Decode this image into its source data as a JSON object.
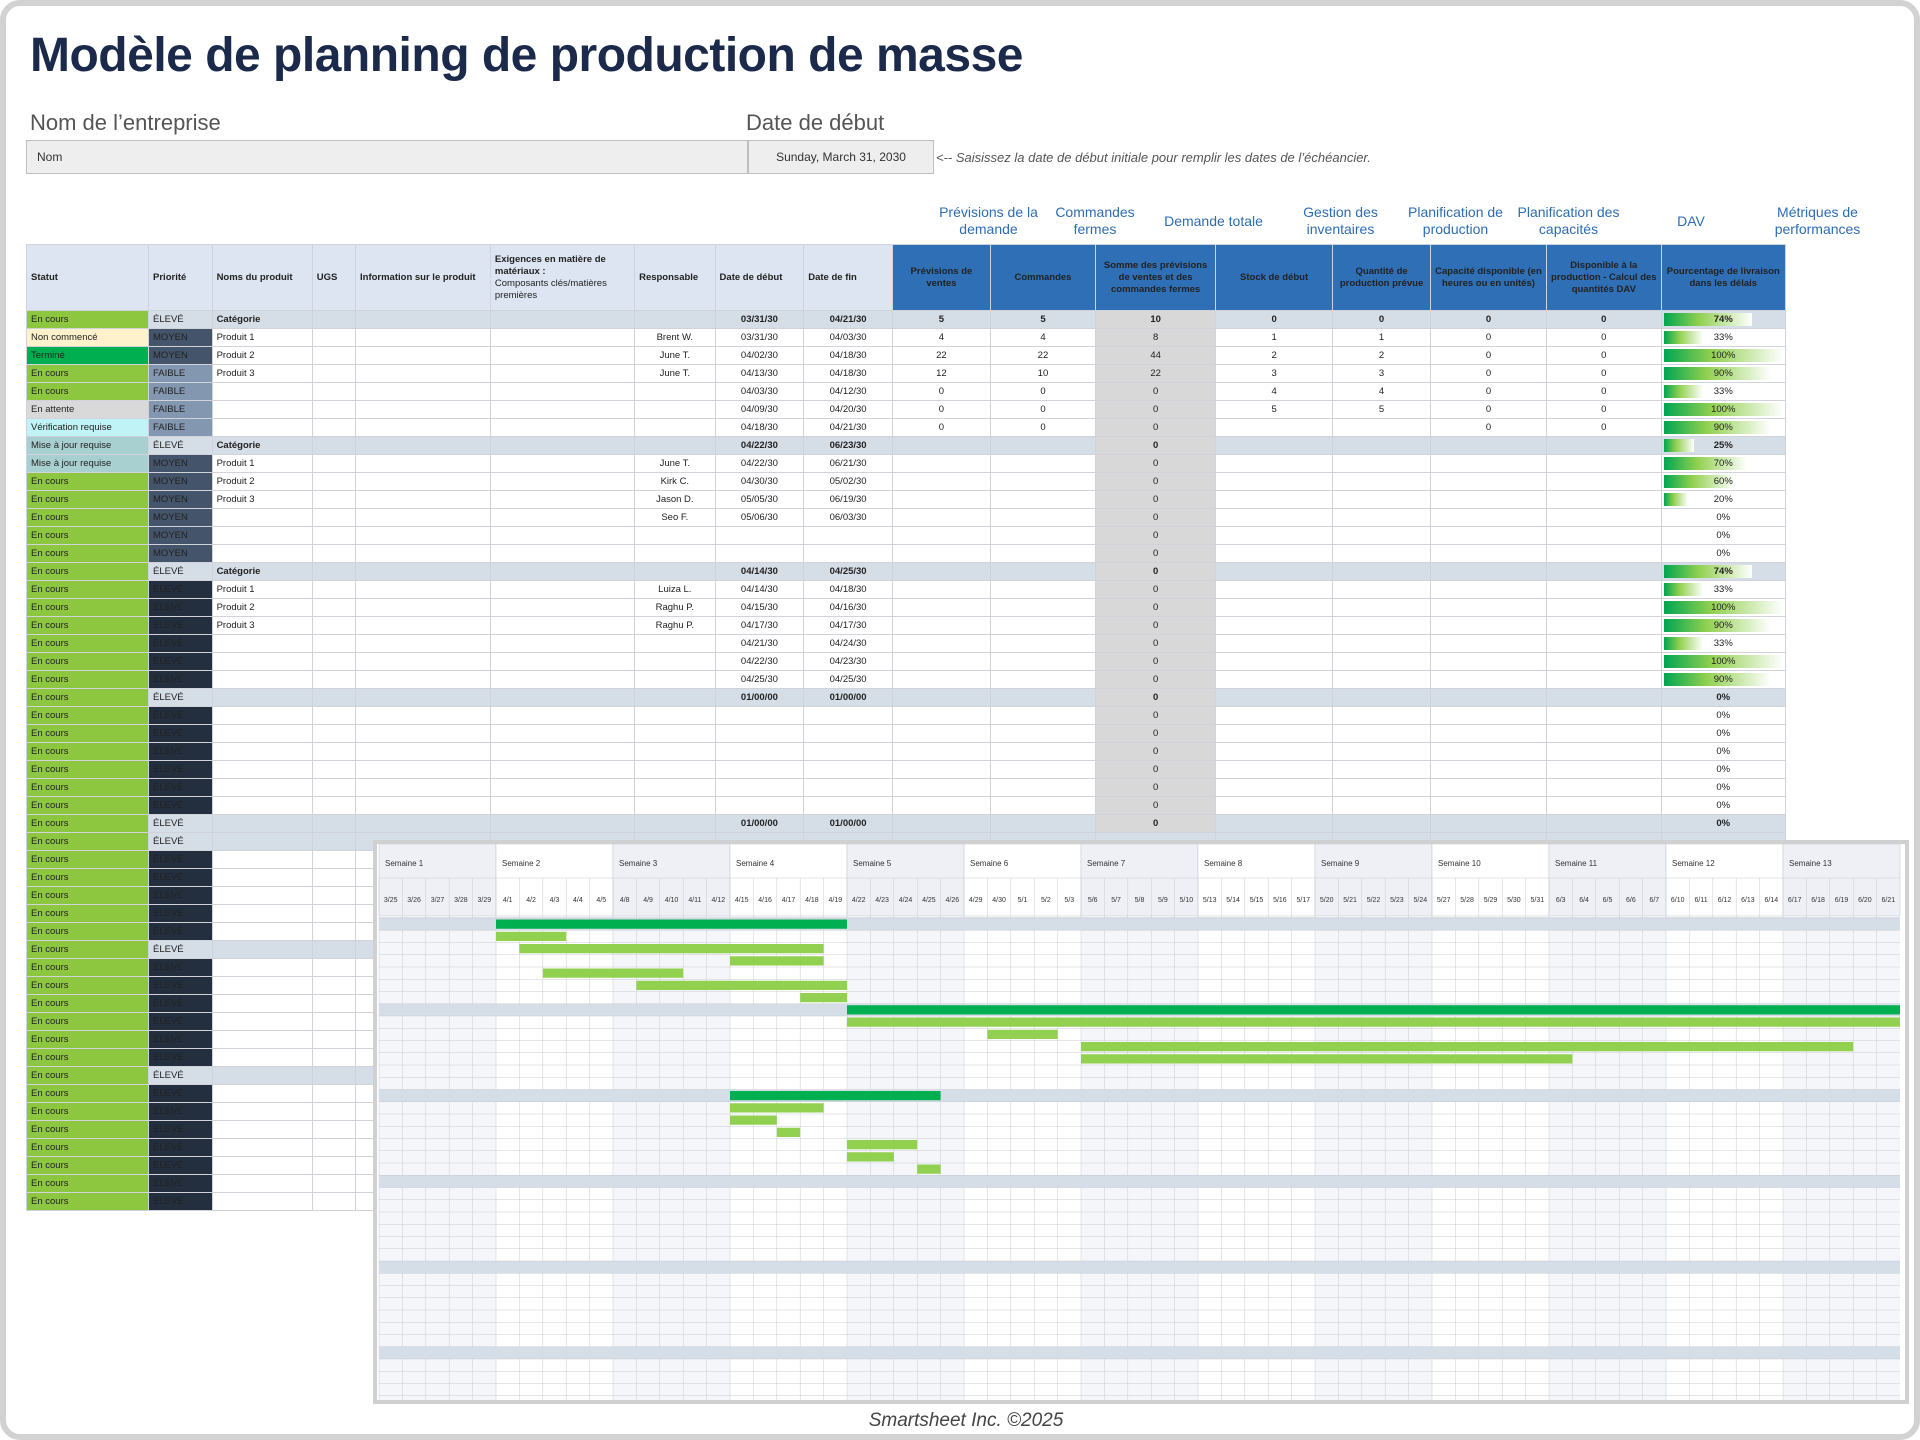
{
  "title": "Modèle de planning de production de masse",
  "company_label": "Nom de l’entreprise",
  "company_value": "Nom",
  "start_label": "Date de début",
  "start_value": "Sunday, March 31, 2030",
  "start_note": "<-- Saisissez la date de début initiale pour remplir les dates de l’échéancier.",
  "group_headers": [
    "Prévisions de la demande",
    "Commandes fermes",
    "Demande totale",
    "Gestion des inventaires",
    "Planification de production",
    "Planification des capacités",
    "DAV",
    "Métriques de performances"
  ],
  "columns": [
    "Statut",
    "Priorité",
    "Noms du produit",
    "UGS",
    "Information sur le produit",
    "Exigences en matière de matériaux :",
    "Composants clés/matières premières",
    "Responsable",
    "Date de début",
    "Date de fin",
    "Prévisions de ventes",
    "Commandes",
    "Somme des prévisions de ventes et des commandes fermes",
    "Stock de début",
    "Quantité de production prévue",
    "Capacité disponible (en heures ou en unités)",
    "Disponible à la production - Calcul des quantités DAV",
    "Pourcentage de livraison dans les délais"
  ],
  "colors": {
    "status": {
      "En cours": "#8dc63f",
      "Non commencé": "#fdf2cc",
      "Terminé": "#00b050",
      "En attente": "#d9d9d9",
      "Vérification requise": "#bff3f5",
      "Mise à jour requise": "#a9d0d1"
    },
    "accent": "#2f6fb5",
    "bar_dark": "#00b050",
    "bar_light": "#92d050"
  },
  "rows": [
    {
      "status": "En cours",
      "priority": "ÉLEVÉ",
      "product": "Catégorie",
      "owner": "",
      "start": "03/31/30",
      "end": "04/21/30",
      "sales": "5",
      "orders": "5",
      "demand": "10",
      "stock": "0",
      "qty": "0",
      "cap": "0",
      "dav": "0",
      "perf": "74%",
      "cat": true
    },
    {
      "status": "Non commencé",
      "priority": "MOYEN",
      "product": "Produit 1",
      "owner": "Brent W.",
      "start": "03/31/30",
      "end": "04/03/30",
      "sales": "4",
      "orders": "4",
      "demand": "8",
      "stock": "1",
      "qty": "1",
      "cap": "0",
      "dav": "0",
      "perf": "33%"
    },
    {
      "status": "Terminé",
      "priority": "MOYEN",
      "product": "Produit 2",
      "owner": "June T.",
      "start": "04/02/30",
      "end": "04/18/30",
      "sales": "22",
      "orders": "22",
      "demand": "44",
      "stock": "2",
      "qty": "2",
      "cap": "0",
      "dav": "0",
      "perf": "100%"
    },
    {
      "status": "En cours",
      "priority": "FAIBLE",
      "product": "Produit 3",
      "owner": "June T.",
      "start": "04/13/30",
      "end": "04/18/30",
      "sales": "12",
      "orders": "10",
      "demand": "22",
      "stock": "3",
      "qty": "3",
      "cap": "0",
      "dav": "0",
      "perf": "90%"
    },
    {
      "status": "En cours",
      "priority": "FAIBLE",
      "product": "",
      "owner": "",
      "start": "04/03/30",
      "end": "04/12/30",
      "sales": "0",
      "orders": "0",
      "demand": "0",
      "stock": "4",
      "qty": "4",
      "cap": "0",
      "dav": "0",
      "perf": "33%"
    },
    {
      "status": "En attente",
      "priority": "FAIBLE",
      "product": "",
      "owner": "",
      "start": "04/09/30",
      "end": "04/20/30",
      "sales": "0",
      "orders": "0",
      "demand": "0",
      "stock": "5",
      "qty": "5",
      "cap": "0",
      "dav": "0",
      "perf": "100%"
    },
    {
      "status": "Vérification requise",
      "priority": "FAIBLE",
      "product": "",
      "owner": "",
      "start": "04/18/30",
      "end": "04/21/30",
      "sales": "0",
      "orders": "0",
      "demand": "0",
      "stock": "",
      "qty": "",
      "cap": "0",
      "dav": "0",
      "perf": "90%"
    },
    {
      "status": "Mise à jour requise",
      "priority": "ÉLEVÉ",
      "product": "Catégorie",
      "owner": "",
      "start": "04/22/30",
      "end": "06/23/30",
      "sales": "",
      "orders": "",
      "demand": "0",
      "stock": "",
      "qty": "",
      "cap": "",
      "dav": "",
      "perf": "25%",
      "cat": true
    },
    {
      "status": "Mise à jour requise",
      "priority": "MOYEN",
      "product": "Produit 1",
      "owner": "June T.",
      "start": "04/22/30",
      "end": "06/21/30",
      "sales": "",
      "orders": "",
      "demand": "0",
      "stock": "",
      "qty": "",
      "cap": "",
      "dav": "",
      "perf": "70%"
    },
    {
      "status": "En cours",
      "priority": "MOYEN",
      "product": "Produit 2",
      "owner": "Kirk C.",
      "start": "04/30/30",
      "end": "05/02/30",
      "sales": "",
      "orders": "",
      "demand": "0",
      "stock": "",
      "qty": "",
      "cap": "",
      "dav": "",
      "perf": "60%"
    },
    {
      "status": "En cours",
      "priority": "MOYEN",
      "product": "Produit 3",
      "owner": "Jason D.",
      "start": "05/05/30",
      "end": "06/19/30",
      "sales": "",
      "orders": "",
      "demand": "0",
      "stock": "",
      "qty": "",
      "cap": "",
      "dav": "",
      "perf": "20%"
    },
    {
      "status": "En cours",
      "priority": "MOYEN",
      "product": "",
      "owner": "Seo F.",
      "start": "05/06/30",
      "end": "06/03/30",
      "sales": "",
      "orders": "",
      "demand": "0",
      "stock": "",
      "qty": "",
      "cap": "",
      "dav": "",
      "perf": "0%"
    },
    {
      "status": "En cours",
      "priority": "MOYEN",
      "product": "",
      "owner": "",
      "start": "",
      "end": "",
      "sales": "",
      "orders": "",
      "demand": "0",
      "stock": "",
      "qty": "",
      "cap": "",
      "dav": "",
      "perf": "0%"
    },
    {
      "status": "En cours",
      "priority": "MOYEN",
      "product": "",
      "owner": "",
      "start": "",
      "end": "",
      "sales": "",
      "orders": "",
      "demand": "0",
      "stock": "",
      "qty": "",
      "cap": "",
      "dav": "",
      "perf": "0%"
    },
    {
      "status": "En cours",
      "priority": "ÉLEVÉ",
      "product": "Catégorie",
      "owner": "",
      "start": "04/14/30",
      "end": "04/25/30",
      "sales": "",
      "orders": "",
      "demand": "0",
      "stock": "",
      "qty": "",
      "cap": "",
      "dav": "",
      "perf": "74%",
      "cat": true
    },
    {
      "status": "En cours",
      "priority": "ÉLEVÉ",
      "product": "Produit 1",
      "owner": "Luiza L.",
      "start": "04/14/30",
      "end": "04/18/30",
      "sales": "",
      "orders": "",
      "demand": "0",
      "stock": "",
      "qty": "",
      "cap": "",
      "dav": "",
      "perf": "33%"
    },
    {
      "status": "En cours",
      "priority": "ÉLEVÉ",
      "product": "Produit 2",
      "owner": "Raghu P.",
      "start": "04/15/30",
      "end": "04/16/30",
      "sales": "",
      "orders": "",
      "demand": "0",
      "stock": "",
      "qty": "",
      "cap": "",
      "dav": "",
      "perf": "100%"
    },
    {
      "status": "En cours",
      "priority": "ÉLEVÉ",
      "product": "Produit 3",
      "owner": "Raghu P.",
      "start": "04/17/30",
      "end": "04/17/30",
      "sales": "",
      "orders": "",
      "demand": "0",
      "stock": "",
      "qty": "",
      "cap": "",
      "dav": "",
      "perf": "90%"
    },
    {
      "status": "En cours",
      "priority": "ÉLEVÉ",
      "product": "",
      "owner": "",
      "start": "04/21/30",
      "end": "04/24/30",
      "sales": "",
      "orders": "",
      "demand": "0",
      "stock": "",
      "qty": "",
      "cap": "",
      "dav": "",
      "perf": "33%"
    },
    {
      "status": "En cours",
      "priority": "ÉLEVÉ",
      "product": "",
      "owner": "",
      "start": "04/22/30",
      "end": "04/23/30",
      "sales": "",
      "orders": "",
      "demand": "0",
      "stock": "",
      "qty": "",
      "cap": "",
      "dav": "",
      "perf": "100%"
    },
    {
      "status": "En cours",
      "priority": "ÉLEVÉ",
      "product": "",
      "owner": "",
      "start": "04/25/30",
      "end": "04/25/30",
      "sales": "",
      "orders": "",
      "demand": "0",
      "stock": "",
      "qty": "",
      "cap": "",
      "dav": "",
      "perf": "90%"
    },
    {
      "status": "En cours",
      "priority": "ÉLEVÉ",
      "product": "",
      "owner": "",
      "start": "01/00/00",
      "end": "01/00/00",
      "sales": "",
      "orders": "",
      "demand": "0",
      "stock": "",
      "qty": "",
      "cap": "",
      "dav": "",
      "perf": "0%",
      "cat": true
    },
    {
      "status": "En cours",
      "priority": "ÉLEVÉ",
      "product": "",
      "owner": "",
      "start": "",
      "end": "",
      "sales": "",
      "orders": "",
      "demand": "0",
      "stock": "",
      "qty": "",
      "cap": "",
      "dav": "",
      "perf": "0%"
    },
    {
      "status": "En cours",
      "priority": "ÉLEVÉ",
      "product": "",
      "owner": "",
      "start": "",
      "end": "",
      "sales": "",
      "orders": "",
      "demand": "0",
      "stock": "",
      "qty": "",
      "cap": "",
      "dav": "",
      "perf": "0%"
    },
    {
      "status": "En cours",
      "priority": "ÉLEVÉ",
      "product": "",
      "owner": "",
      "start": "",
      "end": "",
      "sales": "",
      "orders": "",
      "demand": "0",
      "stock": "",
      "qty": "",
      "cap": "",
      "dav": "",
      "perf": "0%"
    },
    {
      "status": "En cours",
      "priority": "ÉLEVÉ",
      "product": "",
      "owner": "",
      "start": "",
      "end": "",
      "sales": "",
      "orders": "",
      "demand": "0",
      "stock": "",
      "qty": "",
      "cap": "",
      "dav": "",
      "perf": "0%"
    },
    {
      "status": "En cours",
      "priority": "ÉLEVÉ",
      "product": "",
      "owner": "",
      "start": "",
      "end": "",
      "sales": "",
      "orders": "",
      "demand": "0",
      "stock": "",
      "qty": "",
      "cap": "",
      "dav": "",
      "perf": "0%"
    },
    {
      "status": "En cours",
      "priority": "ÉLEVÉ",
      "product": "",
      "owner": "",
      "start": "",
      "end": "",
      "sales": "",
      "orders": "",
      "demand": "0",
      "stock": "",
      "qty": "",
      "cap": "",
      "dav": "",
      "perf": "0%"
    },
    {
      "status": "En cours",
      "priority": "ÉLEVÉ",
      "product": "",
      "owner": "",
      "start": "01/00/00",
      "end": "01/00/00",
      "sales": "",
      "orders": "",
      "demand": "0",
      "stock": "",
      "qty": "",
      "cap": "",
      "dav": "",
      "perf": "0%",
      "cat": true
    },
    {
      "status": "En cours",
      "priority": "ÉLEVÉ",
      "cat": true
    },
    {
      "status": "En cours",
      "priority": "ÉLEVÉ"
    },
    {
      "status": "En cours",
      "priority": "ÉLEVÉ"
    },
    {
      "status": "En cours",
      "priority": "ÉLEVÉ"
    },
    {
      "status": "En cours",
      "priority": "ÉLEVÉ"
    },
    {
      "status": "En cours",
      "priority": "ÉLEVÉ"
    },
    {
      "status": "En cours",
      "priority": "ÉLEVÉ",
      "cat": true
    },
    {
      "status": "En cours",
      "priority": "ÉLEVÉ"
    },
    {
      "status": "En cours",
      "priority": "ÉLEVÉ"
    },
    {
      "status": "En cours",
      "priority": "ÉLEVÉ"
    },
    {
      "status": "En cours",
      "priority": "ÉLEVÉ"
    },
    {
      "status": "En cours",
      "priority": "ÉLEVÉ"
    },
    {
      "status": "En cours",
      "priority": "ÉLEVÉ"
    },
    {
      "status": "En cours",
      "priority": "ÉLEVÉ",
      "cat": true
    },
    {
      "status": "En cours",
      "priority": "ÉLEVÉ"
    },
    {
      "status": "En cours",
      "priority": "ÉLEVÉ"
    },
    {
      "status": "En cours",
      "priority": "ÉLEVÉ"
    },
    {
      "status": "En cours",
      "priority": "ÉLEVÉ"
    },
    {
      "status": "En cours",
      "priority": "ÉLEVÉ"
    },
    {
      "status": "En cours",
      "priority": "ÉLEVÉ"
    },
    {
      "status": "En cours",
      "priority": "ÉLEVÉ"
    }
  ],
  "gantt": {
    "weeks": [
      "Semaine 1",
      "Semaine 2",
      "Semaine 3",
      "Semaine 4",
      "Semaine 5",
      "Semaine 6",
      "Semaine 7",
      "Semaine 8",
      "Semaine 9",
      "Semaine 10",
      "Semaine 11",
      "Semaine 12",
      "Semaine 13"
    ],
    "days": [
      "3/25",
      "3/26",
      "3/27",
      "3/28",
      "3/29",
      "4/1",
      "4/2",
      "4/3",
      "4/4",
      "4/5",
      "4/8",
      "4/9",
      "4/10",
      "4/11",
      "4/12",
      "4/15",
      "4/16",
      "4/17",
      "4/18",
      "4/19",
      "4/22",
      "4/23",
      "4/24",
      "4/25",
      "4/26",
      "4/29",
      "4/30",
      "5/1",
      "5/2",
      "5/3",
      "5/6",
      "5/7",
      "5/8",
      "5/9",
      "5/10",
      "5/13",
      "5/14",
      "5/15",
      "5/16",
      "5/17",
      "5/20",
      "5/21",
      "5/22",
      "5/23",
      "5/24",
      "5/27",
      "5/28",
      "5/29",
      "5/30",
      "5/31",
      "6/3",
      "6/4",
      "6/5",
      "6/6",
      "6/7",
      "6/10",
      "6/11",
      "6/12",
      "6/13",
      "6/14",
      "6/17",
      "6/18",
      "6/19",
      "6/20",
      "6/21"
    ],
    "bars": [
      {
        "row": 0,
        "from": "4/1",
        "to": "4/19",
        "dark": true
      },
      {
        "row": 1,
        "from": "4/1",
        "to": "4/3"
      },
      {
        "row": 2,
        "from": "4/2",
        "to": "4/18"
      },
      {
        "row": 3,
        "from": "4/15",
        "to": "4/18"
      },
      {
        "row": 4,
        "from": "4/3",
        "to": "4/10"
      },
      {
        "row": 5,
        "from": "4/9",
        "to": "4/19"
      },
      {
        "row": 6,
        "from": "4/18",
        "to": "4/19"
      },
      {
        "row": 7,
        "from": "4/22",
        "to": "6/21",
        "dark": true
      },
      {
        "row": 8,
        "from": "4/22",
        "to": "6/21"
      },
      {
        "row": 9,
        "from": "4/30",
        "to": "5/2"
      },
      {
        "row": 10,
        "from": "5/6",
        "to": "6/19"
      },
      {
        "row": 11,
        "from": "5/6",
        "to": "6/3"
      },
      {
        "row": 14,
        "from": "4/15",
        "to": "4/25",
        "dark": true
      },
      {
        "row": 15,
        "from": "4/15",
        "to": "4/18"
      },
      {
        "row": 16,
        "from": "4/15",
        "to": "4/16"
      },
      {
        "row": 17,
        "from": "4/17",
        "to": "4/17"
      },
      {
        "row": 18,
        "from": "4/22",
        "to": "4/24"
      },
      {
        "row": 19,
        "from": "4/22",
        "to": "4/23"
      },
      {
        "row": 20,
        "from": "4/25",
        "to": "4/25"
      }
    ],
    "rows": 44,
    "cat_rows": [
      0,
      7,
      14,
      21,
      28,
      35,
      42
    ]
  },
  "footer": "Smartsheet Inc. ©2025"
}
